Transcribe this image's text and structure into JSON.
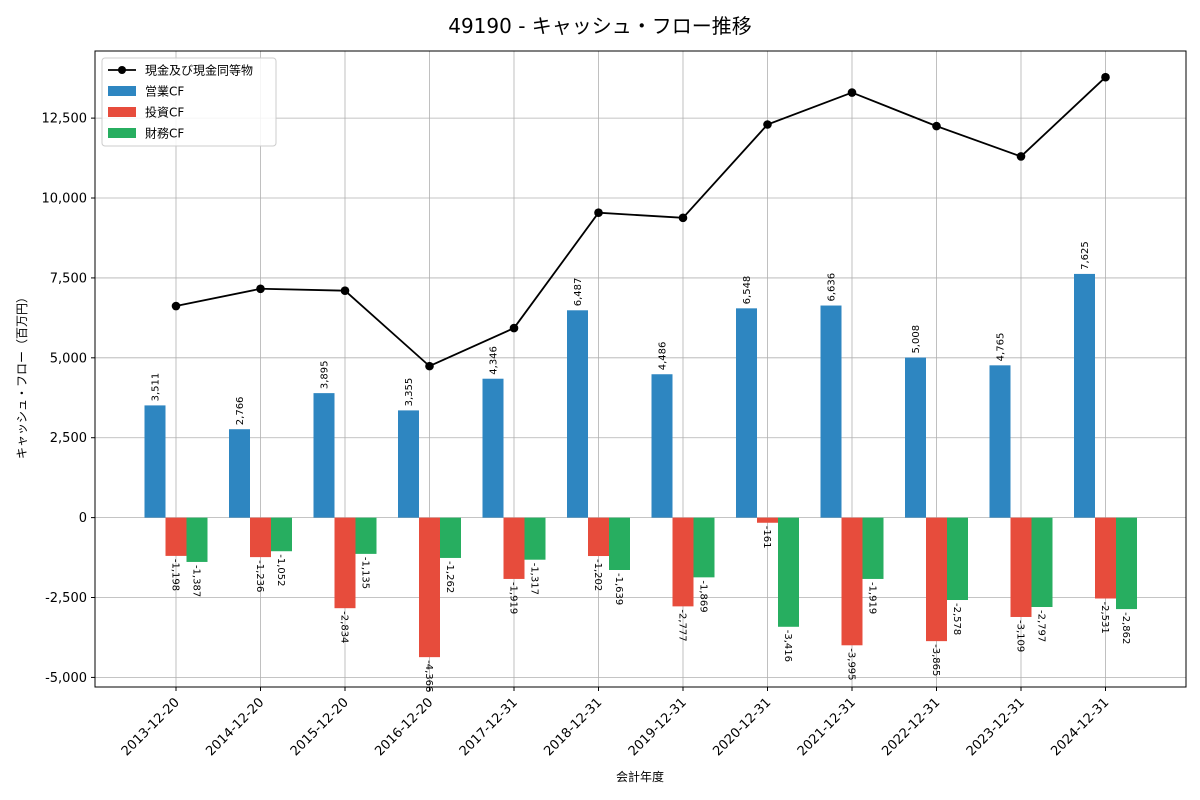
{
  "chart_data": {
    "type": "bar",
    "title": "49190 - キャッシュ・フロー推移",
    "xlabel": "会計年度",
    "ylabel": "キャッシュ・フロー（百万円）",
    "categories": [
      "2013-12-20",
      "2014-12-20",
      "2015-12-20",
      "2016-12-20",
      "2017-12-31",
      "2018-12-31",
      "2019-12-31",
      "2020-12-31",
      "2021-12-31",
      "2022-12-31",
      "2023-12-31",
      "2024-12-31"
    ],
    "series": [
      {
        "name": "営業CF",
        "color": "#2e86c1",
        "values": [
          3511,
          2766,
          3895,
          3355,
          4346,
          6487,
          4486,
          6548,
          6636,
          5008,
          4765,
          7625
        ],
        "labels": [
          "3,511",
          "2,766",
          "3,895",
          "3,355",
          "4,346",
          "6,487",
          "4,486",
          "6,548",
          "6,636",
          "5,008",
          "4,765",
          "7,625"
        ]
      },
      {
        "name": "投資CF",
        "color": "#e74c3c",
        "values": [
          -1198,
          -1236,
          -2834,
          -4366,
          -1919,
          -1202,
          -2777,
          -161,
          -3995,
          -3865,
          -3109,
          -2531
        ],
        "labels": [
          "-1,198",
          "-1,236",
          "-2,834",
          "-4,366",
          "-1,919",
          "-1,202",
          "-2,777",
          "-161",
          "-3,995",
          "-3,865",
          "-3,109",
          "-2,531"
        ]
      },
      {
        "name": "財務CF",
        "color": "#27ae60",
        "values": [
          -1387,
          -1052,
          -1135,
          -1262,
          -1317,
          -1639,
          -1869,
          -3416,
          -1919,
          -2578,
          -2797,
          -2862
        ],
        "labels": [
          "-1,387",
          "-1,052",
          "-1,135",
          "-1,262",
          "-1,317",
          "-1,639",
          "-1,869",
          "-3,416",
          "-1,919",
          "-2,578",
          "-2,797",
          "-2,862"
        ]
      }
    ],
    "line": {
      "name": "現金及び現金同等物",
      "color": "#000000",
      "values": [
        6620,
        7160,
        7100,
        4740,
        5930,
        9540,
        9380,
        12300,
        13300,
        12250,
        11300,
        13780
      ]
    },
    "ylim": [
      -5300,
      14600
    ],
    "yticks": [
      -5000,
      -2500,
      0,
      2500,
      5000,
      7500,
      10000,
      12500
    ],
    "ytick_labels": [
      "-5,000",
      "-2,500",
      "0",
      "2,500",
      "5,000",
      "7,500",
      "10,000",
      "12,500"
    ],
    "grid": true,
    "legend_position": "top-left"
  }
}
